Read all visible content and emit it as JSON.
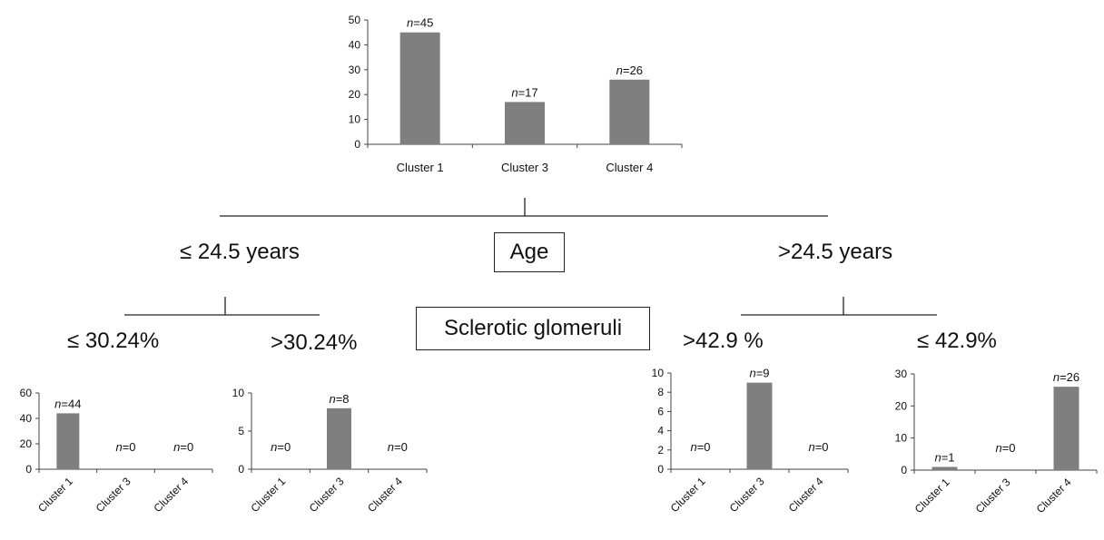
{
  "labels": {
    "age_box": "Age",
    "age_left": "≤ 24.5 years",
    "age_right": ">24.5 years",
    "sclerotic_box": "Sclerotic glomeruli",
    "left_low": "≤ 30.24%",
    "left_high": ">30.24%",
    "right_high": ">42.9 %",
    "right_low": "≤ 42.9%"
  },
  "colors": {
    "bar": "#7f7f7f",
    "axis": "#444444",
    "tree": "#222222"
  },
  "chart_data": [
    {
      "id": "root",
      "type": "bar",
      "categories": [
        "Cluster 1",
        "Cluster 3",
        "Cluster 4"
      ],
      "values": [
        45,
        17,
        26
      ],
      "bar_labels": [
        "n=45",
        "n=17",
        "n=26"
      ],
      "yticks": [
        0,
        10,
        20,
        30,
        40,
        50
      ],
      "ylim": [
        0,
        50
      ],
      "xlabel_rotation": 0
    },
    {
      "id": "age_le_24.5_sclerotic_le_30.24",
      "type": "bar",
      "categories": [
        "Cluster 1",
        "Cluster 3",
        "Cluster 4"
      ],
      "values": [
        44,
        0,
        0
      ],
      "bar_labels": [
        "n=44",
        "n=0",
        "n=0"
      ],
      "yticks": [
        0,
        20,
        40,
        60
      ],
      "ylim": [
        0,
        60
      ],
      "xlabel_rotation": -45
    },
    {
      "id": "age_le_24.5_sclerotic_gt_30.24",
      "type": "bar",
      "categories": [
        "Cluster 1",
        "Cluster 3",
        "Cluster 4"
      ],
      "values": [
        0,
        8,
        0
      ],
      "bar_labels": [
        "n=0",
        "n=8",
        "n=0"
      ],
      "yticks": [
        0,
        5,
        10
      ],
      "ylim": [
        0,
        10
      ],
      "xlabel_rotation": -45
    },
    {
      "id": "age_gt_24.5_sclerotic_gt_42.9",
      "type": "bar",
      "categories": [
        "Cluster 1",
        "Cluster 3",
        "Cluster 4"
      ],
      "values": [
        0,
        9,
        0
      ],
      "bar_labels": [
        "n=0",
        "n=9",
        "n=0"
      ],
      "yticks": [
        0,
        2,
        4,
        6,
        8,
        10
      ],
      "ylim": [
        0,
        10
      ],
      "xlabel_rotation": -45
    },
    {
      "id": "age_gt_24.5_sclerotic_le_42.9",
      "type": "bar",
      "categories": [
        "Cluster 1",
        "Cluster 3",
        "Cluster 4"
      ],
      "values": [
        1,
        0,
        26
      ],
      "bar_labels": [
        "n=1",
        "n=0",
        "n=26"
      ],
      "yticks": [
        0,
        10,
        20,
        30
      ],
      "ylim": [
        0,
        30
      ],
      "xlabel_rotation": -45
    }
  ]
}
